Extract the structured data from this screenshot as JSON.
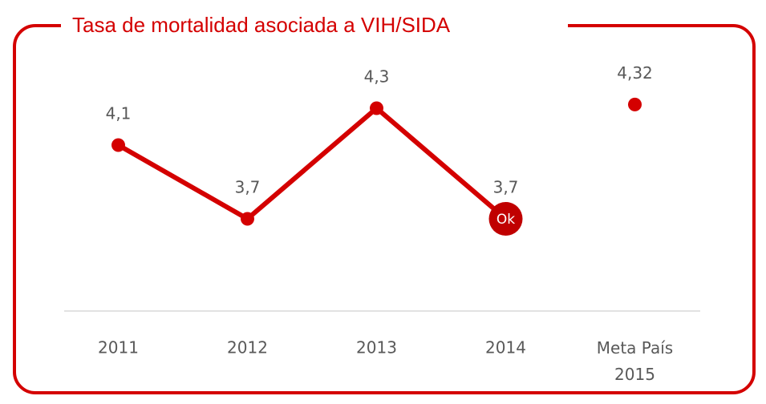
{
  "chart_data": {
    "type": "line",
    "title": "Tasa de mortalidad asociada a VIH/SIDA",
    "categories": [
      "2011",
      "2012",
      "2013",
      "2014",
      "Meta País 2015"
    ],
    "series": [
      {
        "color": "#d40000",
        "values": [
          4.1,
          3.7,
          4.3,
          3.7,
          null
        ],
        "value_labels": [
          "4,1",
          "3,7",
          "4,3",
          "3,7",
          null
        ]
      },
      {
        "color": "#d40000",
        "values": [
          null,
          null,
          null,
          null,
          4.32
        ],
        "value_labels": [
          null,
          null,
          null,
          null,
          "4,32"
        ]
      }
    ],
    "annotation": "Ok",
    "ylim": [
      3.2,
      4.5
    ]
  }
}
